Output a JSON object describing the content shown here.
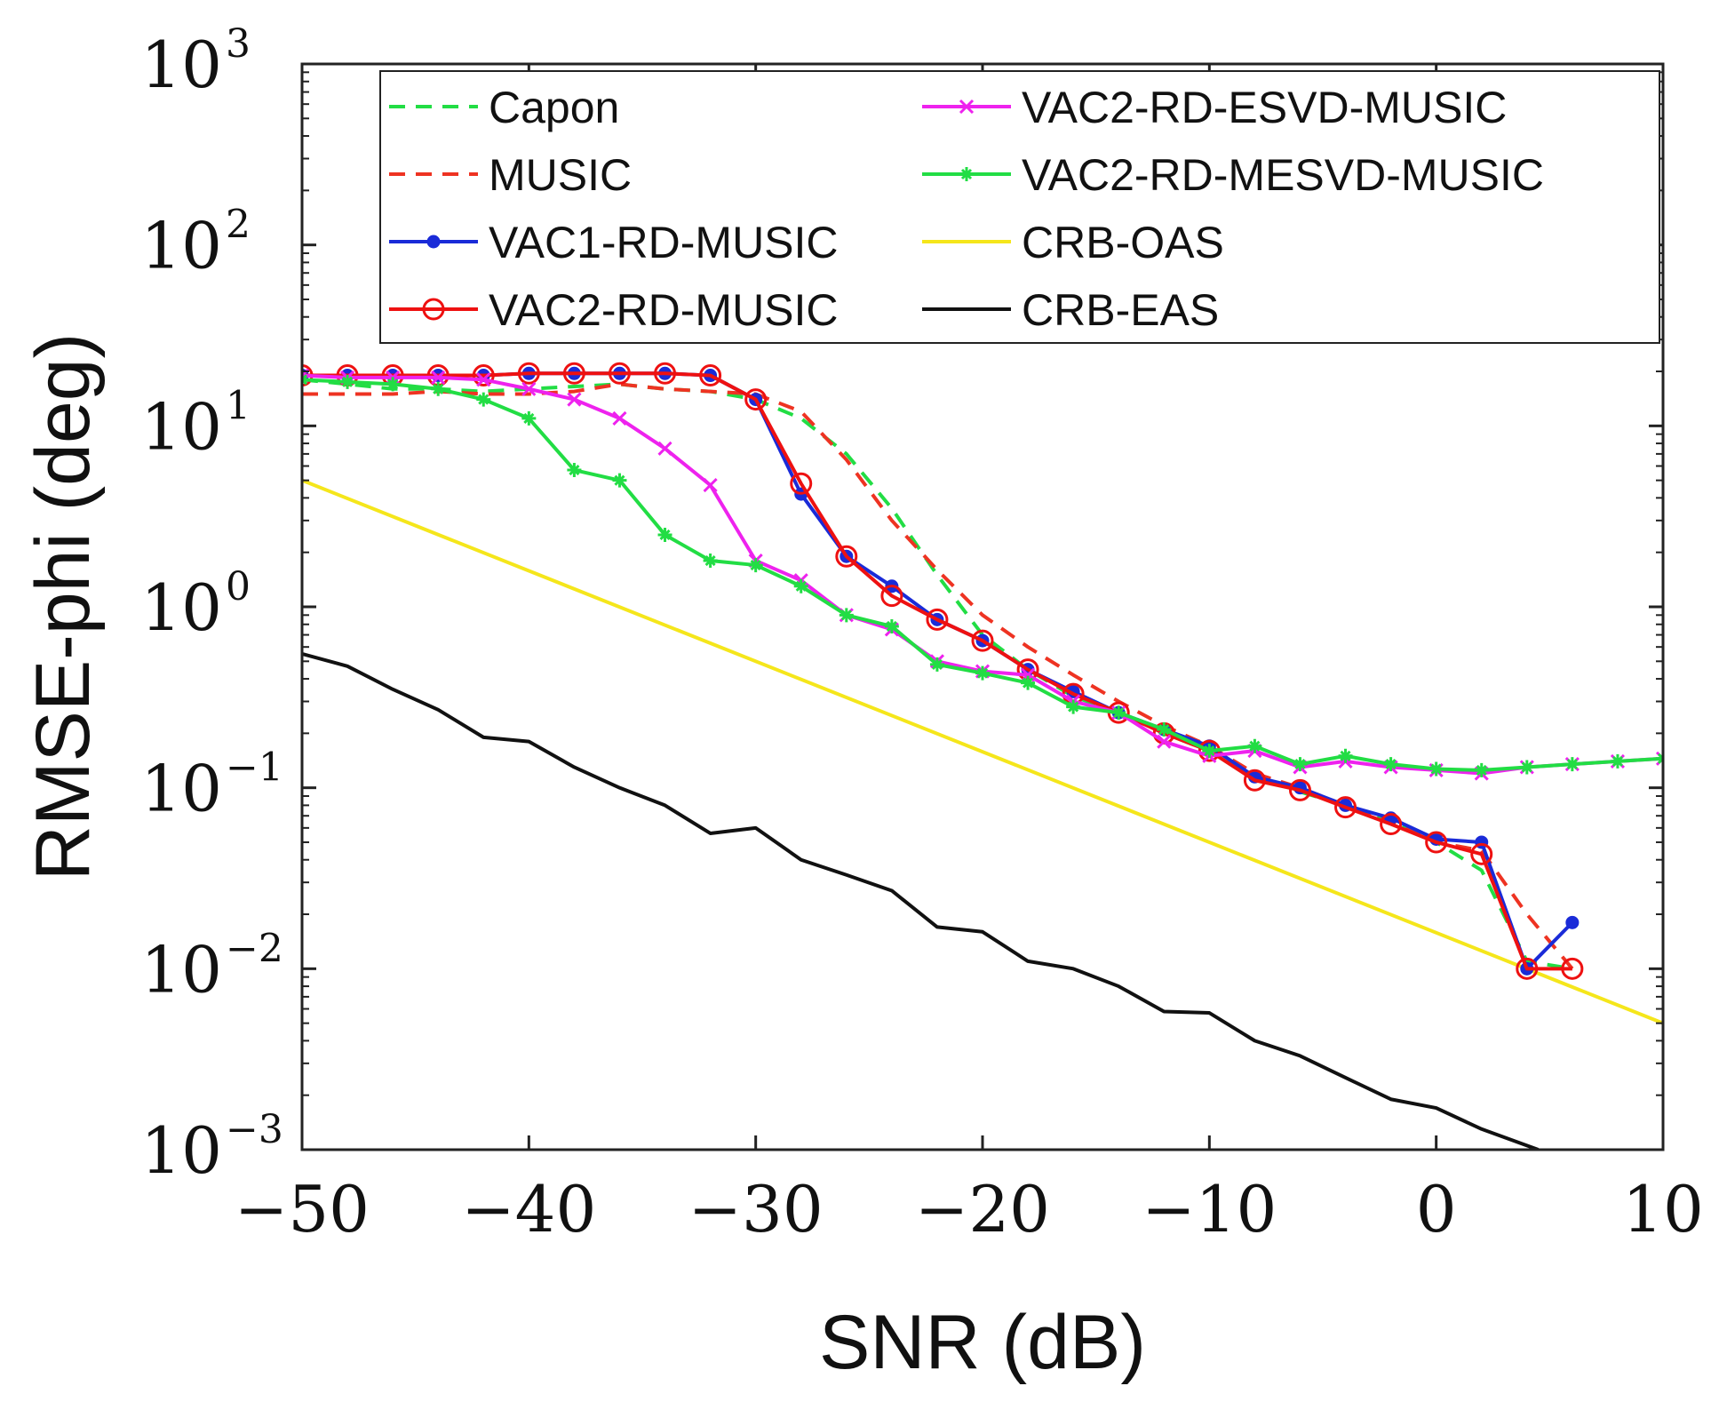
{
  "chart_data": {
    "type": "line",
    "title": "",
    "xlabel": "SNR (dB)",
    "ylabel": "RMSE-phi (deg)",
    "xlim": [
      -50,
      10
    ],
    "ylim": [
      0.001,
      1000
    ],
    "yscale": "log",
    "grid": false,
    "legend_position": "top-right",
    "x_ticks": [
      {
        "value": -50,
        "label": "−50"
      },
      {
        "value": -40,
        "label": "−40"
      },
      {
        "value": -30,
        "label": "−30"
      },
      {
        "value": -20,
        "label": "−20"
      },
      {
        "value": -10,
        "label": "−10"
      },
      {
        "value": 0,
        "label": "0"
      },
      {
        "value": 10,
        "label": "10"
      }
    ],
    "y_ticks": [
      {
        "value": 0.001,
        "base": "10",
        "exp": "−3"
      },
      {
        "value": 0.01,
        "base": "10",
        "exp": "−2"
      },
      {
        "value": 0.1,
        "base": "10",
        "exp": "−1"
      },
      {
        "value": 1,
        "base": "10",
        "exp": "0"
      },
      {
        "value": 10,
        "base": "10",
        "exp": "1"
      },
      {
        "value": 100,
        "base": "10",
        "exp": "2"
      },
      {
        "value": 1000,
        "base": "10",
        "exp": "3"
      }
    ],
    "series": [
      {
        "name": "Capon",
        "color": "#22dd44",
        "style": "dashed",
        "marker": "none",
        "x": [
          -50,
          -48,
          -46,
          -44,
          -42,
          -40,
          -38,
          -36,
          -34,
          -32,
          -30,
          -28,
          -26,
          -24,
          -22,
          -20,
          -18,
          -16,
          -14,
          -12,
          -10,
          -8,
          -6,
          -4,
          -2,
          0,
          2,
          4,
          6
        ],
        "y": [
          18,
          17,
          16,
          16,
          15.5,
          16,
          16.5,
          17,
          16,
          15.5,
          14,
          11,
          7,
          3.5,
          1.5,
          0.7,
          0.45,
          0.32,
          0.26,
          0.2,
          0.16,
          0.12,
          0.095,
          0.08,
          0.065,
          0.05,
          0.035,
          0.011,
          0.01
        ]
      },
      {
        "name": "MUSIC",
        "color": "#ee3322",
        "style": "dashed",
        "marker": "none",
        "x": [
          -50,
          -48,
          -46,
          -44,
          -42,
          -40,
          -38,
          -36,
          -34,
          -32,
          -30,
          -28,
          -26,
          -24,
          -22,
          -20,
          -18,
          -16,
          -14,
          -12,
          -10,
          -8,
          -6,
          -4,
          -2,
          0,
          2,
          4,
          6
        ],
        "y": [
          15,
          15,
          15,
          15.5,
          15,
          15,
          15.5,
          17,
          16,
          15.5,
          15,
          12,
          6.5,
          3,
          1.6,
          0.9,
          0.6,
          0.42,
          0.3,
          0.22,
          0.17,
          0.12,
          0.1,
          0.08,
          0.065,
          0.05,
          0.045,
          0.02,
          0.01
        ]
      },
      {
        "name": "VAC1-RD-MUSIC",
        "color": "#1a2bd8",
        "style": "solid",
        "marker": "dot",
        "x": [
          -50,
          -48,
          -46,
          -44,
          -42,
          -40,
          -38,
          -36,
          -34,
          -32,
          -30,
          -28,
          -26,
          -24,
          -22,
          -20,
          -18,
          -16,
          -14,
          -12,
          -10,
          -8,
          -6,
          -4,
          -2,
          0,
          2,
          4,
          6
        ],
        "y": [
          19,
          19,
          19,
          19,
          19,
          19.5,
          19.5,
          19.5,
          19.5,
          19,
          14,
          4.2,
          1.9,
          1.3,
          0.85,
          0.65,
          0.45,
          0.34,
          0.26,
          0.21,
          0.17,
          0.115,
          0.1,
          0.08,
          0.068,
          0.052,
          0.05,
          0.01,
          0.018
        ]
      },
      {
        "name": "VAC2-RD-MUSIC",
        "color": "#ee1111",
        "style": "solid",
        "marker": "circle",
        "x": [
          -50,
          -48,
          -46,
          -44,
          -42,
          -40,
          -38,
          -36,
          -34,
          -32,
          -30,
          -28,
          -26,
          -24,
          -22,
          -20,
          -18,
          -16,
          -14,
          -12,
          -10,
          -8,
          -6,
          -4,
          -2,
          0,
          2,
          4,
          6
        ],
        "y": [
          19,
          19,
          19,
          19,
          19,
          19.5,
          19.5,
          19.5,
          19.5,
          19,
          14,
          4.8,
          1.9,
          1.15,
          0.85,
          0.65,
          0.45,
          0.33,
          0.26,
          0.2,
          0.16,
          0.11,
          0.097,
          0.078,
          0.063,
          0.05,
          0.043,
          0.01,
          0.01
        ]
      },
      {
        "name": "VAC2-RD-ESVD-MUSIC",
        "color": "#ee22ee",
        "style": "solid",
        "marker": "x",
        "x": [
          -50,
          -48,
          -46,
          -44,
          -42,
          -40,
          -38,
          -36,
          -34,
          -32,
          -30,
          -28,
          -26,
          -24,
          -22,
          -20,
          -18,
          -16,
          -14,
          -12,
          -10,
          -8,
          -6,
          -4,
          -2,
          0,
          2,
          4,
          6,
          8,
          10
        ],
        "y": [
          19,
          18.5,
          18.5,
          18.5,
          18,
          16,
          14,
          11,
          7.5,
          4.7,
          1.8,
          1.4,
          0.9,
          0.75,
          0.5,
          0.44,
          0.42,
          0.3,
          0.26,
          0.18,
          0.15,
          0.16,
          0.13,
          0.14,
          0.13,
          0.125,
          0.12,
          0.13,
          0.135,
          0.14,
          0.145
        ]
      },
      {
        "name": "VAC2-RD-MESVD-MUSIC",
        "color": "#22dd44",
        "style": "solid",
        "marker": "star",
        "x": [
          -50,
          -48,
          -46,
          -44,
          -42,
          -40,
          -38,
          -36,
          -34,
          -32,
          -30,
          -28,
          -26,
          -24,
          -22,
          -20,
          -18,
          -16,
          -14,
          -12,
          -10,
          -8,
          -6,
          -4,
          -2,
          0,
          2,
          4,
          6,
          8,
          10
        ],
        "y": [
          18,
          17.5,
          17,
          16,
          14,
          11,
          5.7,
          5,
          2.5,
          1.8,
          1.7,
          1.3,
          0.9,
          0.78,
          0.48,
          0.43,
          0.38,
          0.28,
          0.26,
          0.21,
          0.16,
          0.17,
          0.135,
          0.15,
          0.135,
          0.127,
          0.125,
          0.13,
          0.135,
          0.14,
          0.145
        ]
      },
      {
        "name": "CRB-OAS",
        "color": "#f5e61b",
        "style": "solid",
        "marker": "none",
        "x": [
          -50,
          10
        ],
        "y": [
          5,
          0.005
        ]
      },
      {
        "name": "CRB-EAS",
        "color": "#111111",
        "style": "solid",
        "marker": "none",
        "x": [
          -50,
          -48,
          -46,
          -44,
          -42,
          -40,
          -38,
          -36,
          -34,
          -32,
          -30,
          -28,
          -26,
          -24,
          -22,
          -20,
          -18,
          -16,
          -14,
          -12,
          -10,
          -8,
          -6,
          -4,
          -2,
          0,
          2,
          4.5
        ],
        "y": [
          0.55,
          0.47,
          0.35,
          0.27,
          0.19,
          0.18,
          0.13,
          0.1,
          0.08,
          0.056,
          0.06,
          0.04,
          0.033,
          0.027,
          0.017,
          0.016,
          0.011,
          0.01,
          0.008,
          0.0058,
          0.0057,
          0.004,
          0.0033,
          0.0025,
          0.0019,
          0.0017,
          0.0013,
          0.001
        ]
      }
    ],
    "legend": [
      {
        "name": "Capon"
      },
      {
        "name": "MUSIC"
      },
      {
        "name": "VAC1-RD-MUSIC"
      },
      {
        "name": "VAC2-RD-MUSIC"
      },
      {
        "name": "VAC2-RD-ESVD-MUSIC"
      },
      {
        "name": "VAC2-RD-MESVD-MUSIC"
      },
      {
        "name": "CRB-OAS"
      },
      {
        "name": "CRB-EAS"
      }
    ]
  }
}
